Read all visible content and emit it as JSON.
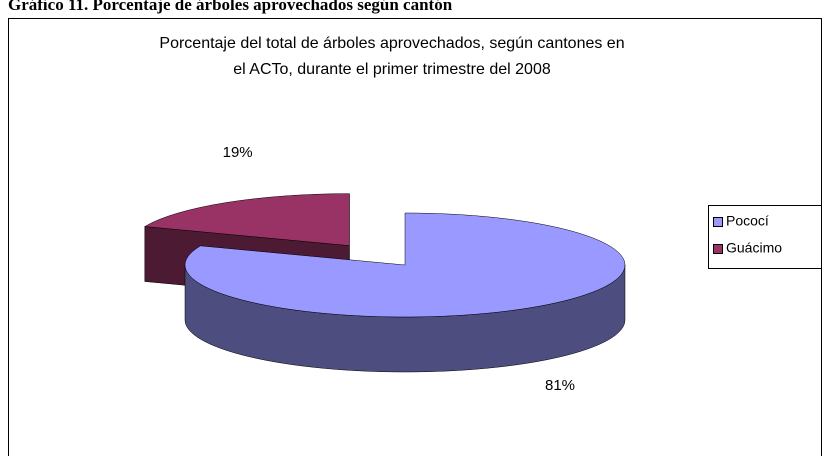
{
  "heading": "Gráfico 11. Porcentaje de árboles aprovechados según cantón",
  "chart_data": {
    "type": "pie",
    "title": [
      "Porcentaje del total de árboles aprovechados, según cantones en",
      "el ACTo, durante el primer trimestre del 2008"
    ],
    "categories": [
      "Pococí",
      "Guácimo"
    ],
    "values": [
      81,
      19
    ],
    "value_labels": [
      "81%",
      "19%"
    ],
    "colors": [
      "#9999ff",
      "#993366"
    ],
    "legend": "right"
  }
}
